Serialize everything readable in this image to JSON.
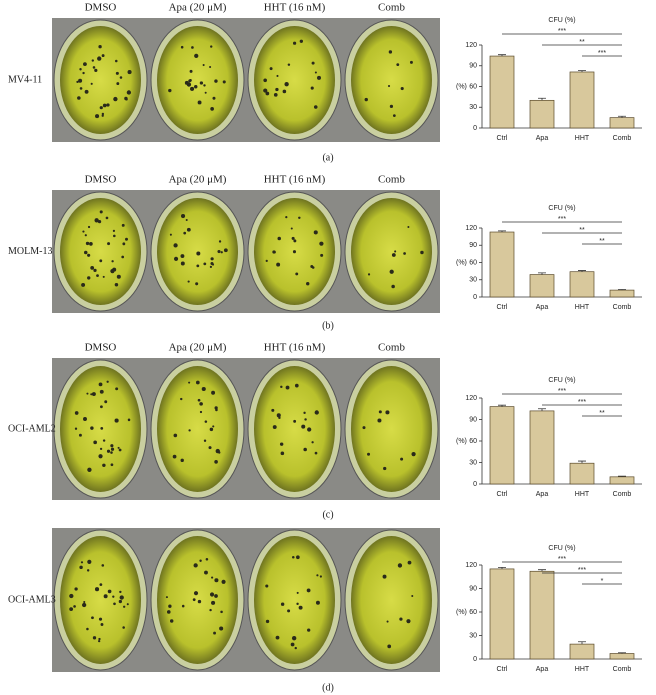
{
  "chart_data": [
    {
      "type": "bar",
      "title": "CFU (%)",
      "y_label": "(%)",
      "categories": [
        "Ctrl",
        "Apa",
        "HHT",
        "Comb"
      ],
      "values": [
        104,
        40,
        81,
        15
      ],
      "errors": [
        2,
        3,
        2,
        2
      ],
      "color": "#d8c89c",
      "ylim": [
        0,
        120
      ],
      "yticks": [
        0,
        30,
        60,
        90,
        120
      ],
      "annotations": [
        "***",
        "**",
        "***"
      ]
    },
    {
      "type": "bar",
      "title": "CFU (%)",
      "y_label": "(%)",
      "categories": [
        "Ctrl",
        "Apa",
        "HHT",
        "Comb"
      ],
      "values": [
        113,
        39,
        44,
        12
      ],
      "errors": [
        2,
        3,
        2,
        1
      ],
      "color": "#d8c89c",
      "ylim": [
        0,
        120
      ],
      "yticks": [
        0,
        30,
        60,
        90,
        120
      ],
      "annotations": [
        "***",
        "**",
        "**"
      ]
    },
    {
      "type": "bar",
      "title": "CFU (%)",
      "y_label": "(%)",
      "categories": [
        "Ctrl",
        "Apa",
        "HHT",
        "Comb"
      ],
      "values": [
        108,
        102,
        29,
        10
      ],
      "errors": [
        2,
        3,
        3,
        1
      ],
      "color": "#d8c89c",
      "ylim": [
        0,
        120
      ],
      "yticks": [
        0,
        30,
        60,
        90,
        120
      ],
      "annotations": [
        "***",
        "***",
        "**"
      ]
    },
    {
      "type": "bar",
      "title": "CFU (%)",
      "y_label": "(%)",
      "categories": [
        "Ctrl",
        "Apa",
        "HHT",
        "Comb"
      ],
      "values": [
        115,
        112,
        19,
        7
      ],
      "errors": [
        2,
        2,
        3,
        1
      ],
      "color": "#d8c89c",
      "ylim": [
        0,
        120
      ],
      "yticks": [
        0,
        30,
        60,
        90,
        120
      ],
      "annotations": [
        "***",
        "***",
        "*"
      ]
    }
  ],
  "panels": [
    {
      "cell_line": "MV4-11",
      "columns": [
        "DMSO",
        "Apa (20 μM)",
        "HHT (16 nM)",
        "Comb"
      ],
      "letter": "(a)"
    },
    {
      "cell_line": "MOLM-13",
      "columns": [
        "DMSO",
        "Apa (20 μM)",
        "HHT (16 nM)",
        "Comb"
      ],
      "letter": "(b)"
    },
    {
      "cell_line": "OCI-AML2",
      "columns": [
        "DMSO",
        "Apa (20 μM)",
        "HHT (16 nM)",
        "Comb"
      ],
      "letter": "(c)"
    },
    {
      "cell_line": "OCI-AML3",
      "letter": "(d)"
    }
  ]
}
